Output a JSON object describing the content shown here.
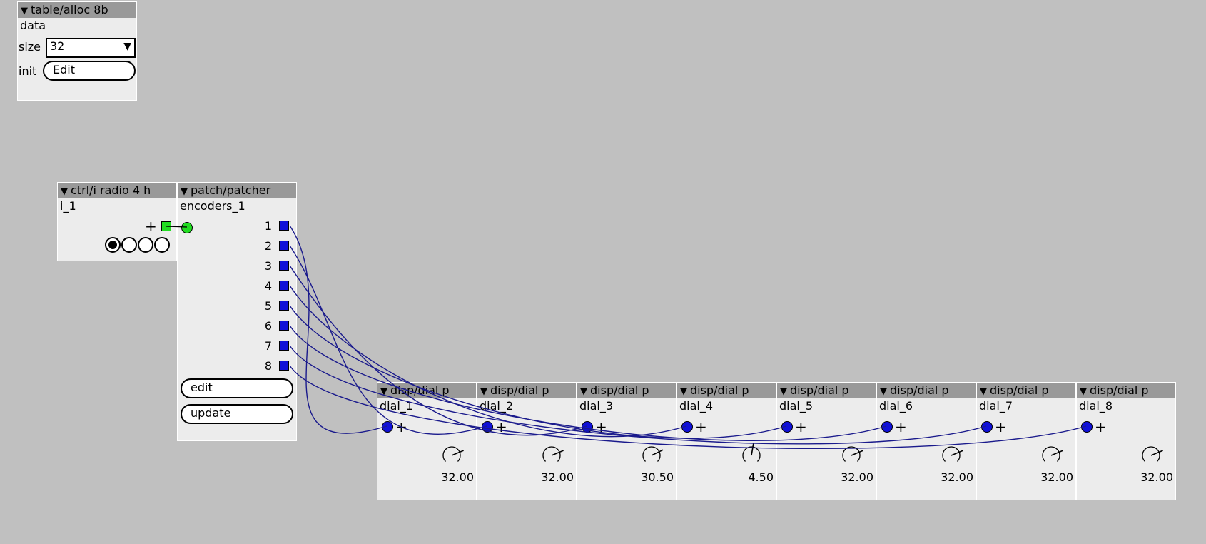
{
  "table_alloc": {
    "title": "table/alloc 8b",
    "instance": "data",
    "size_label": "size",
    "size_value": "32",
    "init_label": "init",
    "edit_label": "Edit"
  },
  "radio": {
    "title": "ctrl/i radio 4 h",
    "instance": "i_1",
    "selected_index": 0,
    "count": 4
  },
  "patcher": {
    "title": "patch/patcher",
    "instance": "encoders_1",
    "outlets": [
      "1",
      "2",
      "3",
      "4",
      "5",
      "6",
      "7",
      "8"
    ],
    "edit_label": "edit",
    "update_label": "update"
  },
  "dials": [
    {
      "title": "disp/dial p",
      "instance": "dial_1",
      "value": "32.00"
    },
    {
      "title": "disp/dial p",
      "instance": "dial_2",
      "value": "32.00"
    },
    {
      "title": "disp/dial p",
      "instance": "dial_3",
      "value": "30.50"
    },
    {
      "title": "disp/dial p",
      "instance": "dial_4",
      "value": "4.50"
    },
    {
      "title": "disp/dial p",
      "instance": "dial_5",
      "value": "32.00"
    },
    {
      "title": "disp/dial p",
      "instance": "dial_6",
      "value": "32.00"
    },
    {
      "title": "disp/dial p",
      "instance": "dial_7",
      "value": "32.00"
    },
    {
      "title": "disp/dial p",
      "instance": "dial_8",
      "value": "32.00"
    }
  ],
  "colors": {
    "background": "#c0c0c0",
    "object_body": "#ececec",
    "title_bar": "#999999",
    "wire": "#1a1a8c",
    "outlet": "#1010d8",
    "green_connector": "#22dd22"
  }
}
